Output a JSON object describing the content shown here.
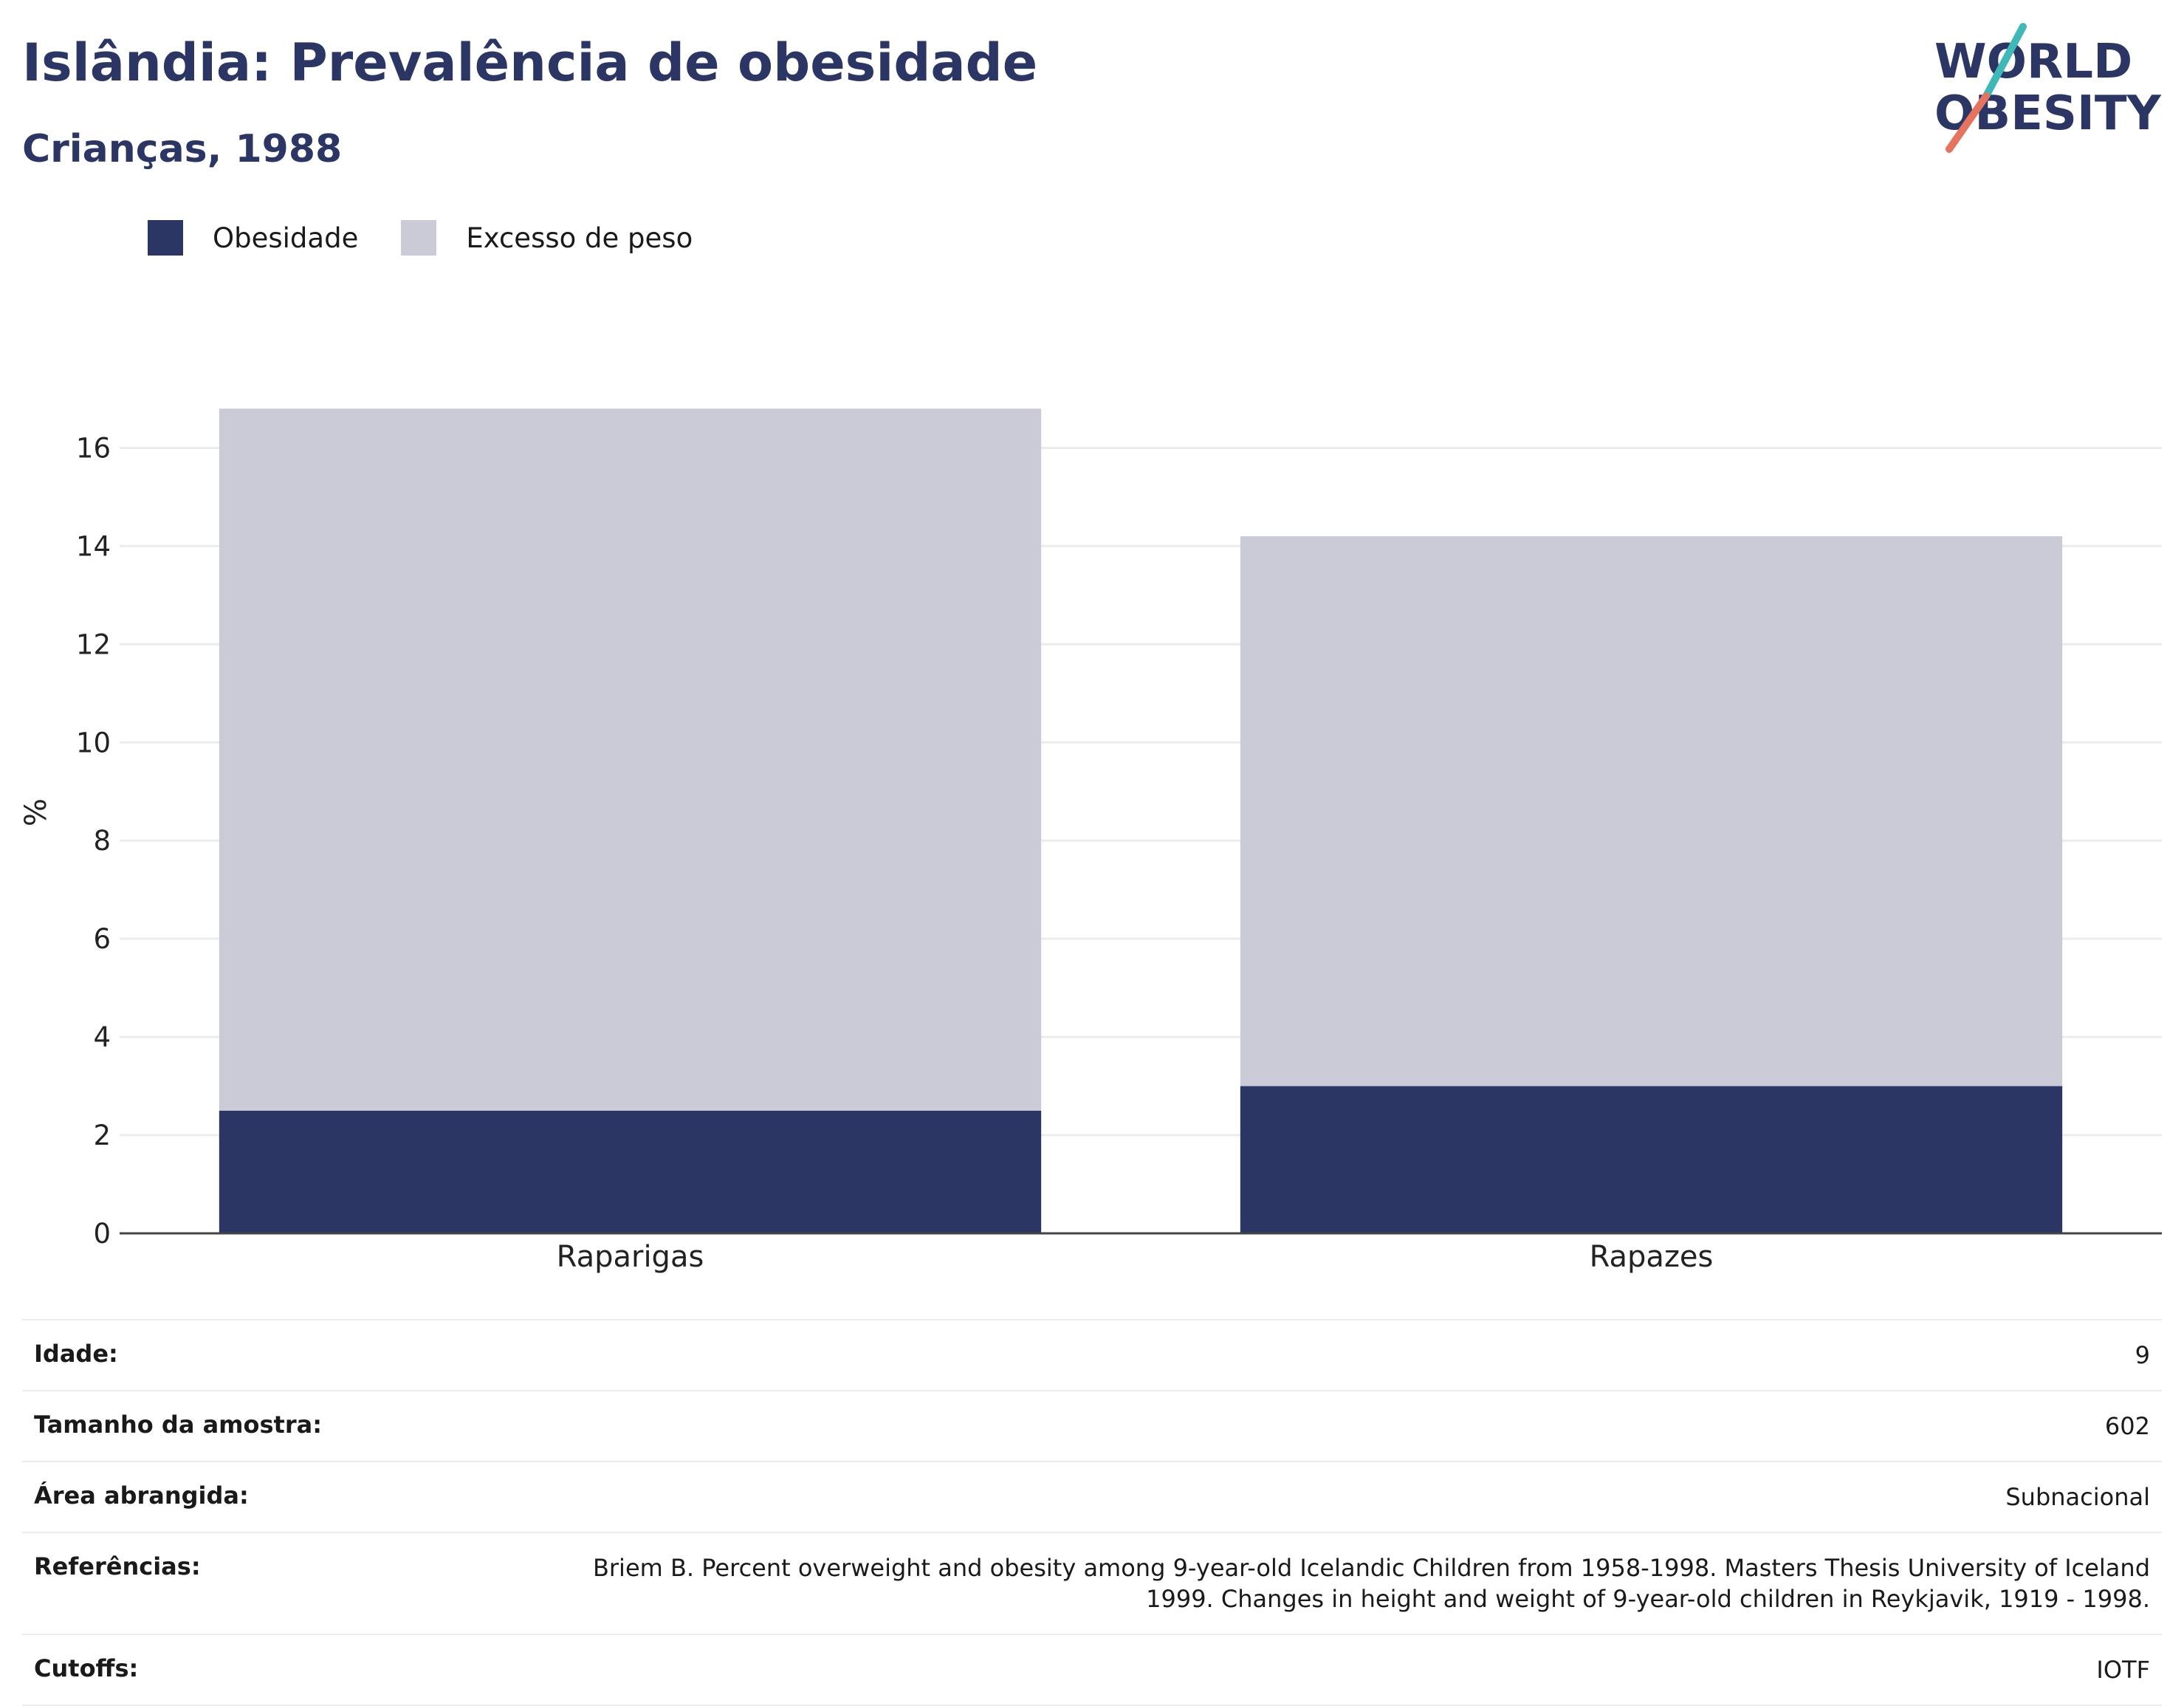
{
  "header": {
    "title": "Islândia: Prevalência de obesidade",
    "subtitle": "Crianças, 1988"
  },
  "logo": {
    "line1": "WORLD",
    "line2": "OBESITY"
  },
  "colors": {
    "obesity": "#2b3664",
    "overweight": "#cacbd7",
    "brand_teal": "#3fb8b8",
    "brand_coral": "#e5735e"
  },
  "chart_data": {
    "type": "bar",
    "stacked": true,
    "categories": [
      "Raparigas",
      "Rapazes"
    ],
    "series": [
      {
        "name": "Obesidade",
        "values": [
          2.5,
          3.0
        ]
      },
      {
        "name": "Excesso de peso",
        "values": [
          14.3,
          11.2
        ]
      }
    ],
    "totals": [
      16.8,
      14.2
    ],
    "ylabel": "%",
    "ylim": [
      0,
      17
    ],
    "yticks": [
      0,
      2,
      4,
      6,
      8,
      10,
      12,
      14,
      16
    ],
    "grid": true,
    "legend": "top-left"
  },
  "info": [
    {
      "key": "Idade:",
      "value": "9"
    },
    {
      "key": "Tamanho da amostra:",
      "value": "602"
    },
    {
      "key": "Área abrangida:",
      "value": "Subnacional"
    },
    {
      "key": "Referências:",
      "value": "Briem B. Percent overweight and obesity among 9-year-old Icelandic Children from 1958-1998. Masters Thesis University of Iceland 1999. Changes in height and weight of 9-year-old children in Reykjavik, 1919 - 1998."
    },
    {
      "key": "Cutoffs:",
      "value": "IOTF"
    }
  ]
}
